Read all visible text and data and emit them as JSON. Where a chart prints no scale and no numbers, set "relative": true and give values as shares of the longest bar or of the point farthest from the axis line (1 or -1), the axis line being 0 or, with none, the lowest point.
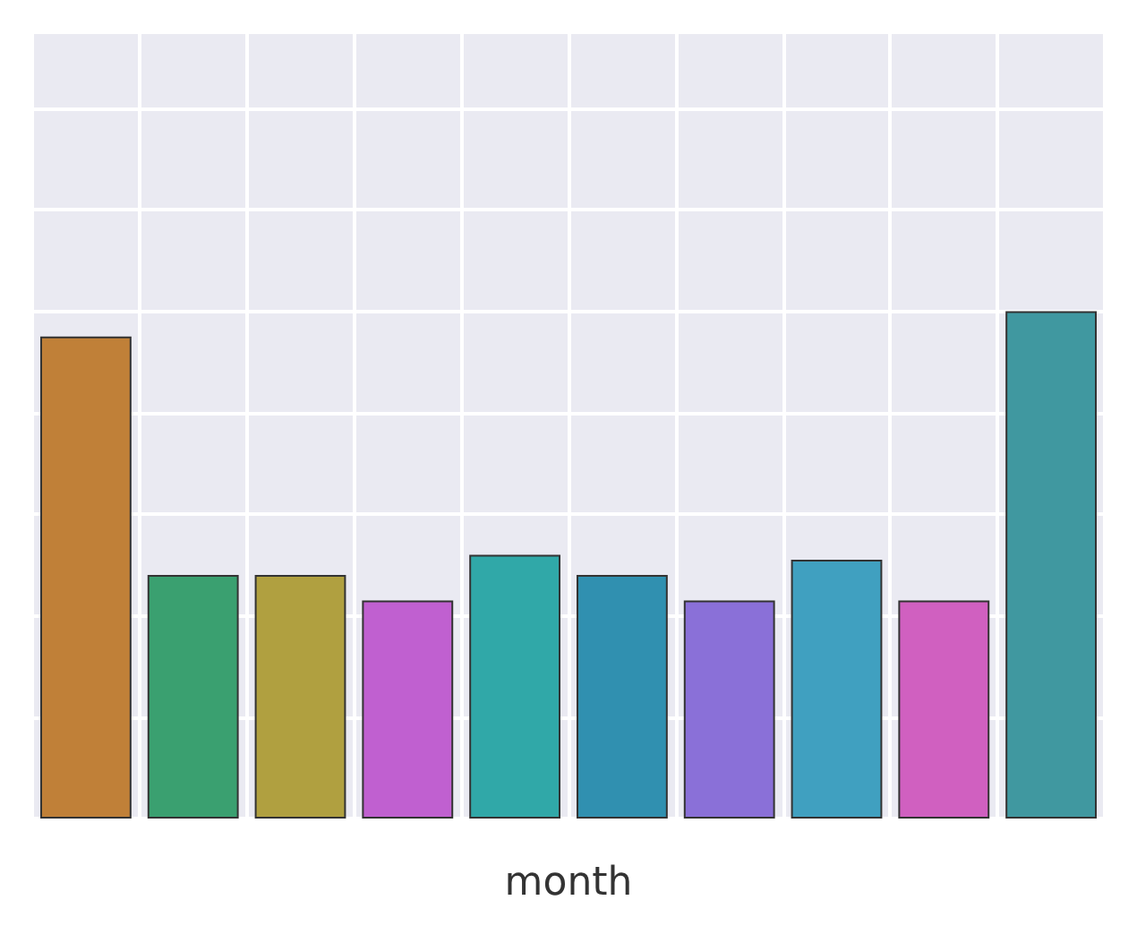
{
  "chart_data": {
    "type": "bar",
    "xlabel": "month",
    "relative": true,
    "grid": true,
    "categories": [
      null,
      null,
      null,
      null,
      null,
      null,
      null,
      null,
      null,
      null
    ],
    "values": [
      0.95,
      0.48,
      0.48,
      0.43,
      0.52,
      0.48,
      0.43,
      0.51,
      0.43,
      1
    ],
    "colors": [
      "#c08038",
      "#3aa070",
      "#b0a040",
      "#c060d0",
      "#30a8a8",
      "#3090b0",
      "#8a70d8",
      "#40a0c0",
      "#d060c0",
      "#4098a0"
    ]
  }
}
